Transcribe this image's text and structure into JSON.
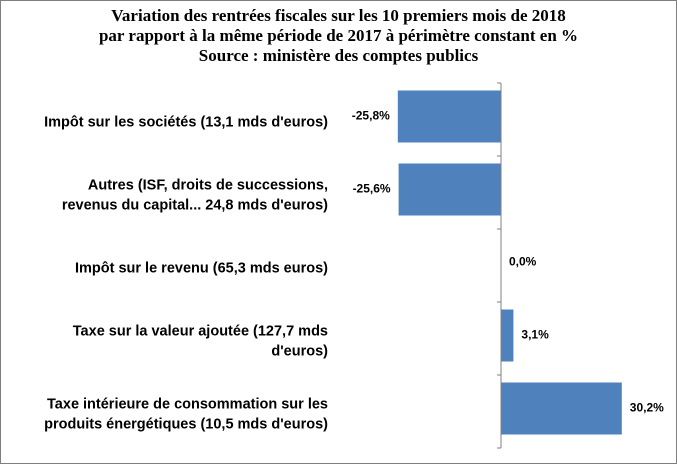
{
  "chart_data": {
    "type": "bar",
    "orientation": "horizontal",
    "title_lines": [
      "Variation des rentrées fiscales sur les 10 premiers mois de 2018",
      "par rapport à la même période de 2017 à périmètre constant en %",
      "Source : ministère des comptes publics"
    ],
    "categories": [
      [
        "Impôt sur les sociétés (13,1 mds d'euros)"
      ],
      [
        "Autres (ISF, droits de successions,",
        "revenus du capital... 24,8 mds d'euros)"
      ],
      [
        "Impôt sur le revenu (65,3 mds euros)"
      ],
      [
        "Taxe sur la valeur ajoutée (127,7 mds",
        "d'euros)"
      ],
      [
        "Taxe intérieure de consommation sur les",
        "produits énergétiques (10,5 mds d'euros)"
      ]
    ],
    "values": [
      -25.8,
      -25.6,
      0.0,
      3.1,
      30.2
    ],
    "data_labels": [
      "-25,8%",
      "-25,6%",
      "0,0%",
      "3,1%",
      "30,2%"
    ],
    "bar_color": "#4f81bd",
    "axis_line_color": "#808080",
    "xlim": [
      -30,
      35
    ],
    "grid": false,
    "legend": "none"
  }
}
